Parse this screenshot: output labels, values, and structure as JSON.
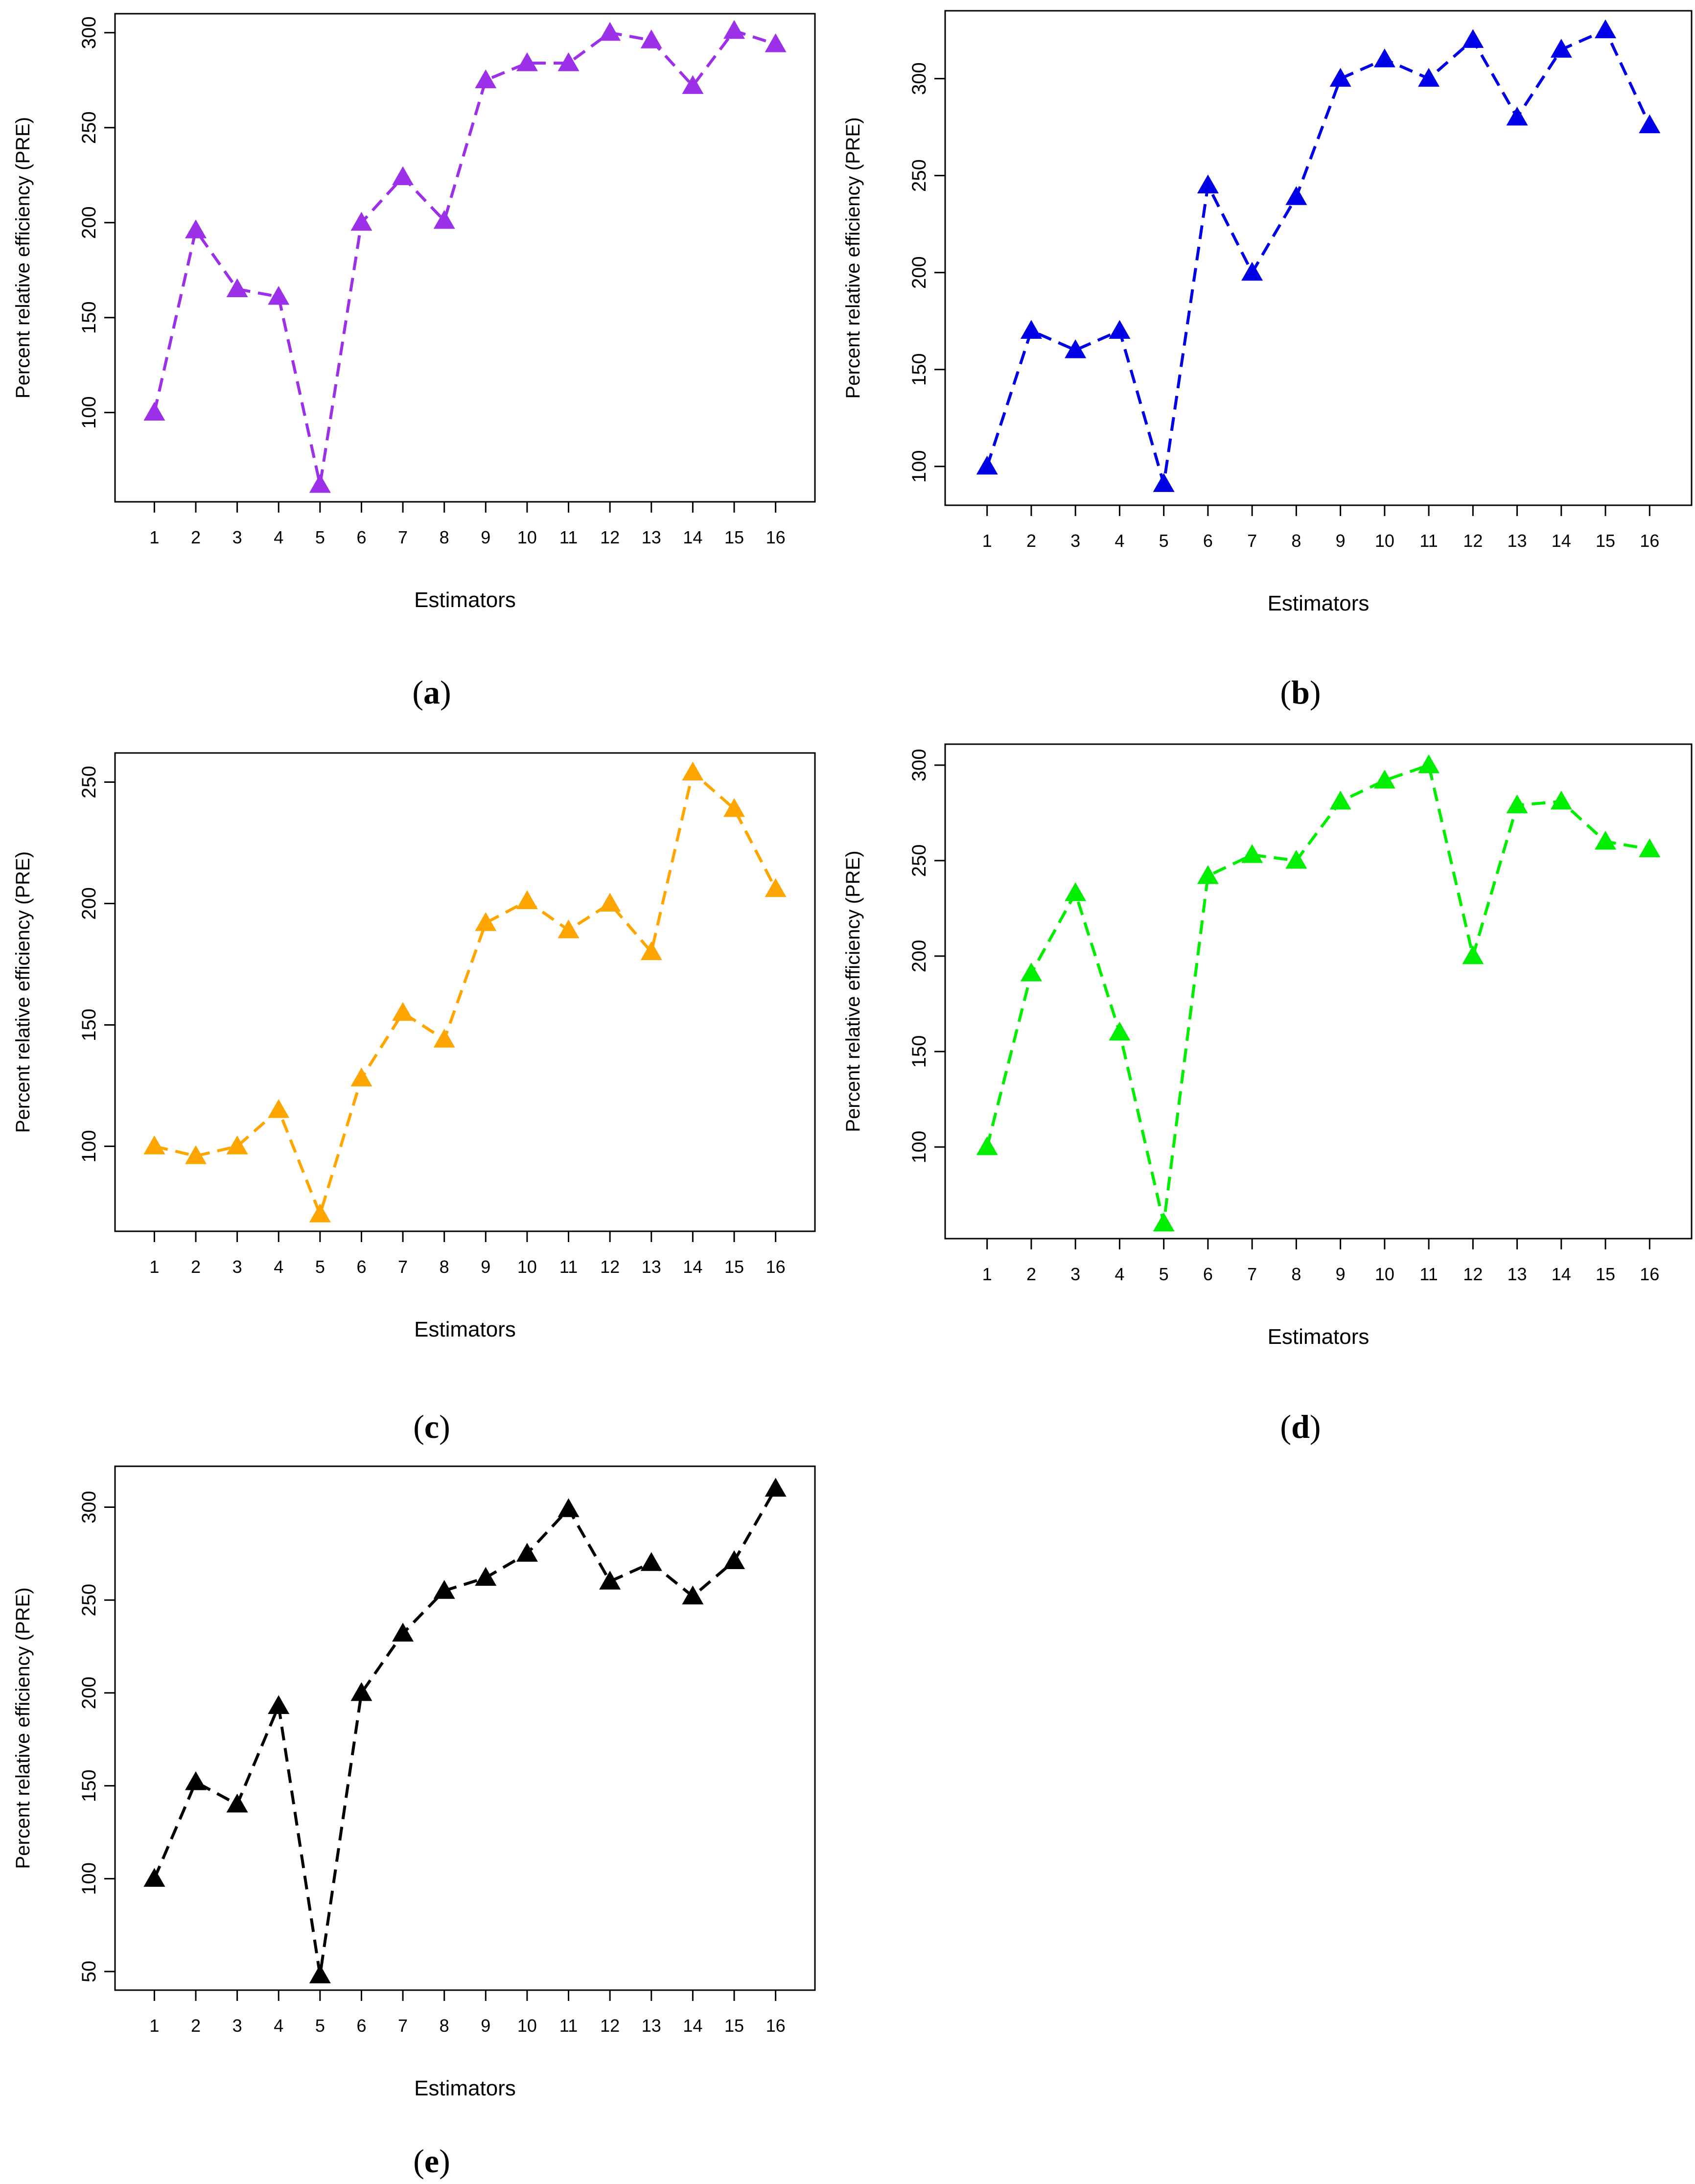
{
  "colors": {
    "a": "#9b30e8",
    "b": "#0000e6",
    "c": "#ffa500",
    "d": "#00ee00",
    "e": "#000000"
  },
  "chart_data": [
    {
      "id": "a",
      "type": "line",
      "caption_letter": "a",
      "xlabel": "Estimators",
      "ylabel": "Percent relative efficiency (PRE)",
      "x": [
        1,
        2,
        3,
        4,
        5,
        6,
        7,
        8,
        9,
        10,
        11,
        12,
        13,
        14,
        15,
        16
      ],
      "ylim": [
        53,
        310
      ],
      "yticks": [
        100,
        150,
        200,
        250,
        300
      ],
      "series": [
        {
          "values": [
            100,
            196,
            165,
            161,
            62,
            200,
            224,
            201,
            275,
            284,
            284,
            300,
            296,
            272,
            301,
            294
          ]
        }
      ],
      "line_style": "dashed",
      "marker": "triangle",
      "color": "#9b30e8"
    },
    {
      "id": "b",
      "type": "line",
      "caption_letter": "b",
      "xlabel": "Estimators",
      "ylabel": "Percent relative efficiency (PRE)",
      "x": [
        1,
        2,
        3,
        4,
        5,
        6,
        7,
        8,
        9,
        10,
        11,
        12,
        13,
        14,
        15,
        16
      ],
      "ylim": [
        80,
        335
      ],
      "yticks": [
        100,
        150,
        200,
        250,
        300
      ],
      "series": [
        {
          "values": [
            100,
            170,
            160,
            170,
            91,
            245,
            200,
            239,
            300,
            310,
            300,
            320,
            280,
            315,
            325,
            276
          ]
        }
      ],
      "line_style": "dashed",
      "marker": "triangle",
      "color": "#0000e6"
    },
    {
      "id": "c",
      "type": "line",
      "caption_letter": "c",
      "xlabel": "Estimators",
      "ylabel": "Percent relative efficiency (PRE)",
      "x": [
        1,
        2,
        3,
        4,
        5,
        6,
        7,
        8,
        9,
        10,
        11,
        12,
        13,
        14,
        15,
        16
      ],
      "ylim": [
        65,
        262
      ],
      "yticks": [
        100,
        150,
        200,
        250
      ],
      "series": [
        {
          "values": [
            100,
            96,
            100,
            115,
            72,
            128,
            155,
            144,
            192,
            201,
            189,
            200,
            180,
            254,
            239,
            206
          ]
        }
      ],
      "line_style": "dashed",
      "marker": "triangle",
      "color": "#ffa500"
    },
    {
      "id": "d",
      "type": "line",
      "caption_letter": "d",
      "xlabel": "Estimators",
      "ylabel": "Percent relative efficiency (PRE)",
      "x": [
        1,
        2,
        3,
        4,
        5,
        6,
        7,
        8,
        9,
        10,
        11,
        12,
        13,
        14,
        15,
        16
      ],
      "ylim": [
        52,
        311
      ],
      "yticks": [
        100,
        150,
        200,
        250,
        300
      ],
      "series": [
        {
          "values": [
            100,
            191,
            233,
            160,
            60,
            242,
            253,
            250,
            281,
            292,
            300,
            200,
            279,
            281,
            260,
            256
          ]
        }
      ],
      "line_style": "dashed",
      "marker": "triangle",
      "color": "#00ee00"
    },
    {
      "id": "e",
      "type": "line",
      "caption_letter": "e",
      "xlabel": "Estimators",
      "ylabel": "Percent relative efficiency (PRE)",
      "x": [
        1,
        2,
        3,
        4,
        5,
        6,
        7,
        8,
        9,
        10,
        11,
        12,
        13,
        14,
        15,
        16
      ],
      "ylim": [
        40,
        322
      ],
      "yticks": [
        50,
        100,
        150,
        200,
        250,
        300
      ],
      "series": [
        {
          "values": [
            100,
            152,
            140,
            193,
            48,
            200,
            232,
            255,
            262,
            275,
            299,
            260,
            270,
            252,
            271,
            310
          ]
        }
      ],
      "line_style": "dashed",
      "marker": "triangle",
      "color": "#000000"
    }
  ]
}
